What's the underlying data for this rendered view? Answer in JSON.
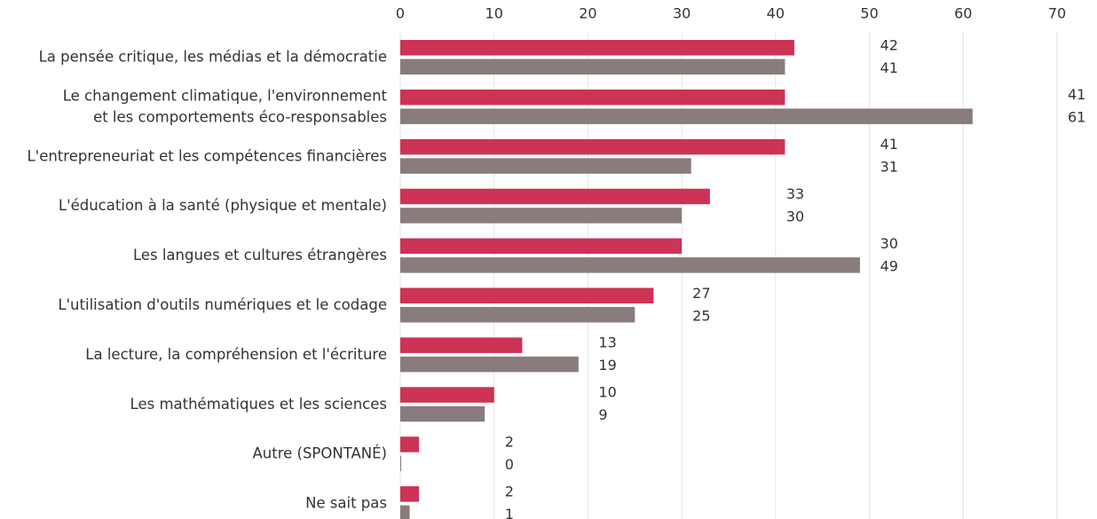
{
  "chart_data": {
    "type": "hbar",
    "categories": [
      [
        "La pensée critique, les médias et la démocratie"
      ],
      [
        "Le changement climatique, l'environnement",
        "et les comportements éco-responsables"
      ],
      [
        "L'entrepreneuriat et les compétences financières"
      ],
      [
        "L'éducation à la santé (physique et mentale)"
      ],
      [
        "Les langues et cultures étrangères"
      ],
      [
        "L'utilisation d'outils numériques et le codage"
      ],
      [
        "La lecture, la compréhension et l'écriture"
      ],
      [
        "Les mathématiques et les sciences"
      ],
      [
        "Autre (SPONTANÉ)"
      ],
      [
        "Ne sait pas"
      ]
    ],
    "series": [
      {
        "color": "#cc3355",
        "values": [
          42,
          41,
          41,
          33,
          30,
          27,
          13,
          10,
          2,
          2
        ]
      },
      {
        "color": "#8a7b7d",
        "values": [
          41,
          61,
          31,
          30,
          49,
          25,
          19,
          9,
          0,
          1
        ]
      }
    ],
    "xlim": [
      0,
      70
    ],
    "xticks": [
      0,
      10,
      20,
      30,
      40,
      50,
      60,
      70
    ],
    "grid": true
  }
}
